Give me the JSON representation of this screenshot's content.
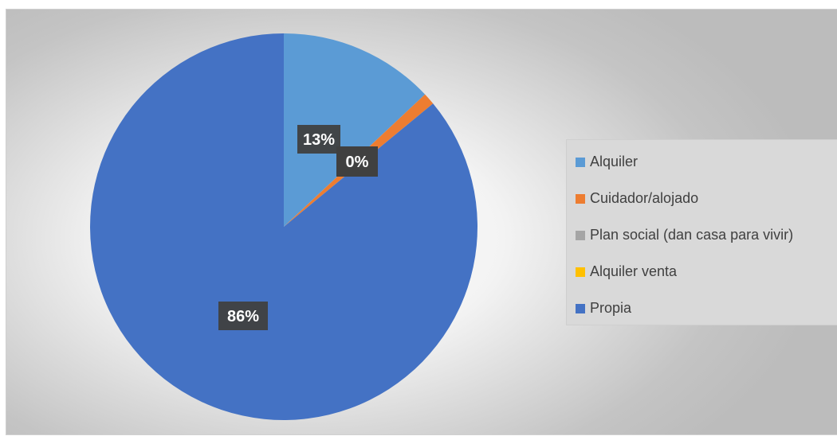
{
  "chart_data": {
    "type": "pie",
    "slices": [
      {
        "label": "Alquiler",
        "value": 13,
        "percent_label": "13%",
        "color": "#5B9BD5"
      },
      {
        "label": "Cuidador/alojado",
        "value": 1,
        "percent_label": "1%",
        "color": "#ED7D31"
      },
      {
        "label": "Plan social (dan casa para vivir)",
        "value": 0,
        "percent_label": "0%",
        "color": "#A5A5A5"
      },
      {
        "label": "Alquiler venta",
        "value": 0,
        "percent_label": "0%",
        "color": "#FFC000"
      },
      {
        "label": "Propia",
        "value": 86,
        "percent_label": "86%",
        "color": "#4472C4"
      }
    ],
    "legend_position": "right"
  }
}
